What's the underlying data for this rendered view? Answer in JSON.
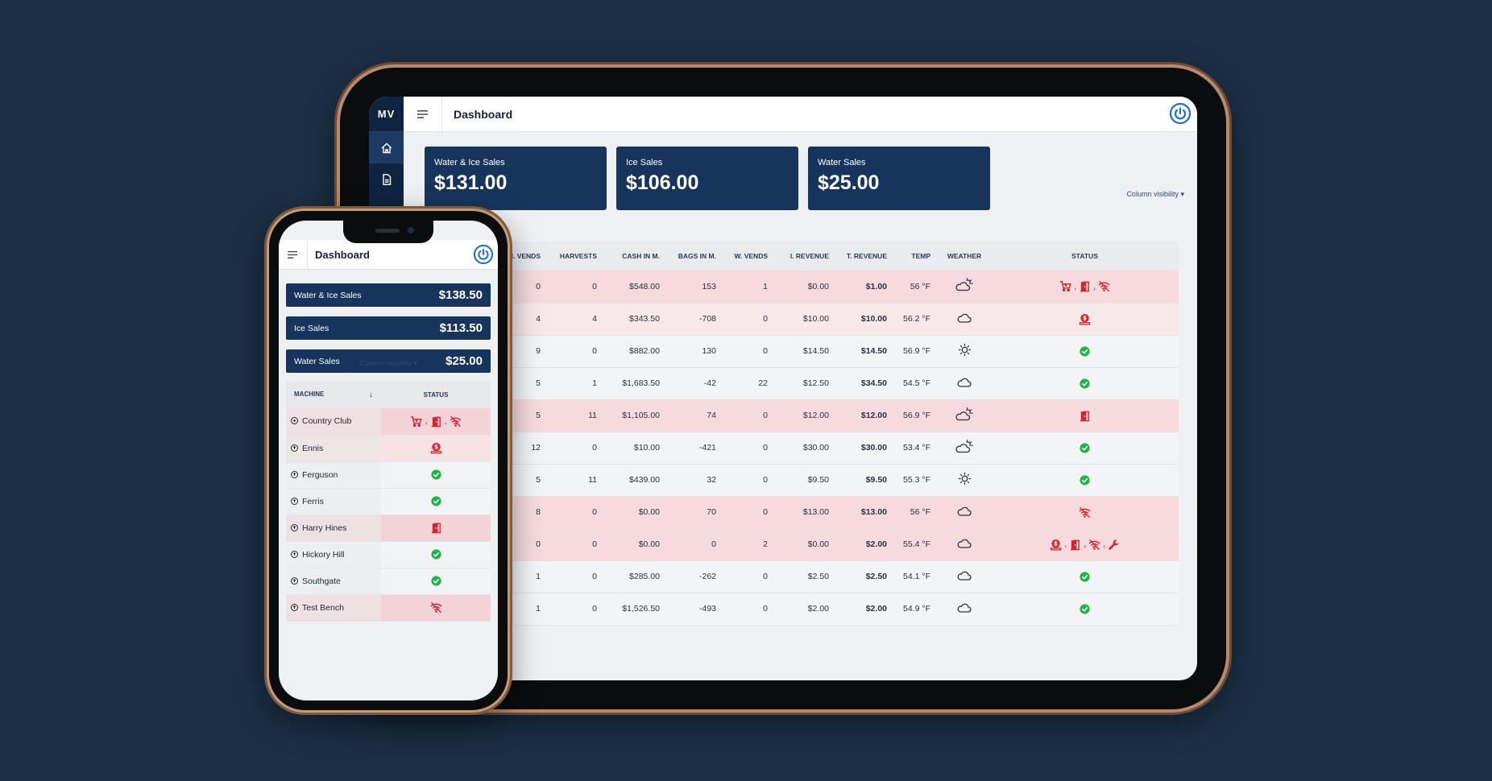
{
  "tablet": {
    "logo": "MV",
    "title": "Dashboard",
    "cards": [
      {
        "label": "Water & Ice Sales",
        "value": "$131.00"
      },
      {
        "label": "Ice Sales",
        "value": "$106.00"
      },
      {
        "label": "Water Sales",
        "value": "$25.00"
      }
    ],
    "column_visibility": "Column visibility",
    "columns": [
      "",
      "I. VENDS",
      "HARVESTS",
      "CASH IN M.",
      "BAGS IN M.",
      "W. VENDS",
      "I. REVENUE",
      "T. REVENUE",
      "TEMP",
      "WEATHER",
      "STATUS"
    ],
    "rows": [
      {
        "name": "",
        "i_vends": "0",
        "harvests": "0",
        "cash": "$548.00",
        "bags": "153",
        "w_vends": "1",
        "i_rev": "$0.00",
        "t_rev": "$1.00",
        "temp": "56 °F",
        "weather": "partly-sunny",
        "state": "alert",
        "status": [
          "cart-icon",
          "door-icon",
          "wifi-off-icon"
        ]
      },
      {
        "name": "",
        "i_vends": "4",
        "harvests": "4",
        "cash": "$343.50",
        "bags": "-708",
        "w_vends": "0",
        "i_rev": "$10.00",
        "t_rev": "$10.00",
        "temp": "56.2 °F",
        "weather": "cloudy",
        "state": "warn",
        "status": [
          "money-icon"
        ]
      },
      {
        "name": "",
        "i_vends": "9",
        "harvests": "0",
        "cash": "$882.00",
        "bags": "130",
        "w_vends": "0",
        "i_rev": "$14.50",
        "t_rev": "$14.50",
        "temp": "56.9 °F",
        "weather": "sunny",
        "state": "ok",
        "status": [
          "check-icon"
        ]
      },
      {
        "name": "",
        "i_vends": "5",
        "harvests": "1",
        "cash": "$1,683.50",
        "bags": "-42",
        "w_vends": "22",
        "i_rev": "$12.50",
        "t_rev": "$34.50",
        "temp": "54.5 °F",
        "weather": "cloudy",
        "state": "ok",
        "status": [
          "check-icon"
        ]
      },
      {
        "name": "",
        "i_vends": "5",
        "harvests": "11",
        "cash": "$1,105.00",
        "bags": "74",
        "w_vends": "0",
        "i_rev": "$12.00",
        "t_rev": "$12.00",
        "temp": "56.9 °F",
        "weather": "partly-sunny",
        "state": "alert",
        "status": [
          "door-icon"
        ]
      },
      {
        "name": "",
        "i_vends": "12",
        "harvests": "0",
        "cash": "$10.00",
        "bags": "-421",
        "w_vends": "0",
        "i_rev": "$30.00",
        "t_rev": "$30.00",
        "temp": "53.4 °F",
        "weather": "partly-sunny",
        "state": "ok",
        "status": [
          "check-icon"
        ]
      },
      {
        "name": "",
        "i_vends": "5",
        "harvests": "11",
        "cash": "$439.00",
        "bags": "32",
        "w_vends": "0",
        "i_rev": "$9.50",
        "t_rev": "$9.50",
        "temp": "55.3 °F",
        "weather": "sunny",
        "state": "ok",
        "status": [
          "check-icon"
        ]
      },
      {
        "name": "",
        "i_vends": "8",
        "harvests": "0",
        "cash": "$0.00",
        "bags": "70",
        "w_vends": "0",
        "i_rev": "$13.00",
        "t_rev": "$13.00",
        "temp": "56 °F",
        "weather": "cloudy",
        "state": "alert",
        "status": [
          "wifi-off-icon"
        ]
      },
      {
        "name": "n",
        "i_vends": "0",
        "harvests": "0",
        "cash": "$0.00",
        "bags": "0",
        "w_vends": "2",
        "i_rev": "$0.00",
        "t_rev": "$2.00",
        "temp": "55.4 °F",
        "weather": "cloudy",
        "state": "alert",
        "status": [
          "money-icon",
          "door-icon",
          "wifi-off-icon",
          "wrench-icon"
        ]
      },
      {
        "name": "",
        "i_vends": "1",
        "harvests": "0",
        "cash": "$285.00",
        "bags": "-262",
        "w_vends": "0",
        "i_rev": "$2.50",
        "t_rev": "$2.50",
        "temp": "54.1 °F",
        "weather": "cloudy",
        "state": "ok",
        "status": [
          "check-icon"
        ]
      },
      {
        "name": "",
        "i_vends": "1",
        "harvests": "0",
        "cash": "$1,526.50",
        "bags": "-493",
        "w_vends": "0",
        "i_rev": "$2.00",
        "t_rev": "$2.00",
        "temp": "54.9 °F",
        "weather": "cloudy",
        "state": "ok",
        "status": [
          "check-icon"
        ]
      }
    ]
  },
  "phone": {
    "title": "Dashboard",
    "cards": [
      {
        "label": "Water & Ice Sales",
        "value": "$138.50"
      },
      {
        "label": "Ice Sales",
        "value": "$113.50"
      },
      {
        "label": "Water Sales",
        "value": "$25.00"
      }
    ],
    "column_visibility": "Column visibility",
    "columns": {
      "machine": "MACHINE",
      "status": "STATUS"
    },
    "rows": [
      {
        "name": "Country Club",
        "state": "alert",
        "status": [
          "cart-icon",
          "door-icon",
          "wifi-off-icon"
        ]
      },
      {
        "name": "Ennis",
        "state": "warn",
        "status": [
          "money-icon"
        ]
      },
      {
        "name": "Ferguson",
        "state": "ok",
        "status": [
          "check-icon"
        ]
      },
      {
        "name": "Ferris",
        "state": "ok",
        "status": [
          "check-icon"
        ]
      },
      {
        "name": "Harry Hines",
        "state": "alert",
        "status": [
          "door-icon"
        ]
      },
      {
        "name": "Hickory Hill",
        "state": "ok",
        "status": [
          "check-icon"
        ]
      },
      {
        "name": "Southgate",
        "state": "ok",
        "status": [
          "check-icon"
        ]
      },
      {
        "name": "Test Bench",
        "state": "alert",
        "status": [
          "wifi-off-icon"
        ]
      }
    ]
  },
  "colors": {
    "background": "#1c2f45",
    "navy": "#17355c",
    "sidebar": "#0f2440",
    "alert_row": "#f6dadd",
    "error": "#d6242d",
    "ok": "#1fb34a",
    "power": "#1b6fd0"
  }
}
